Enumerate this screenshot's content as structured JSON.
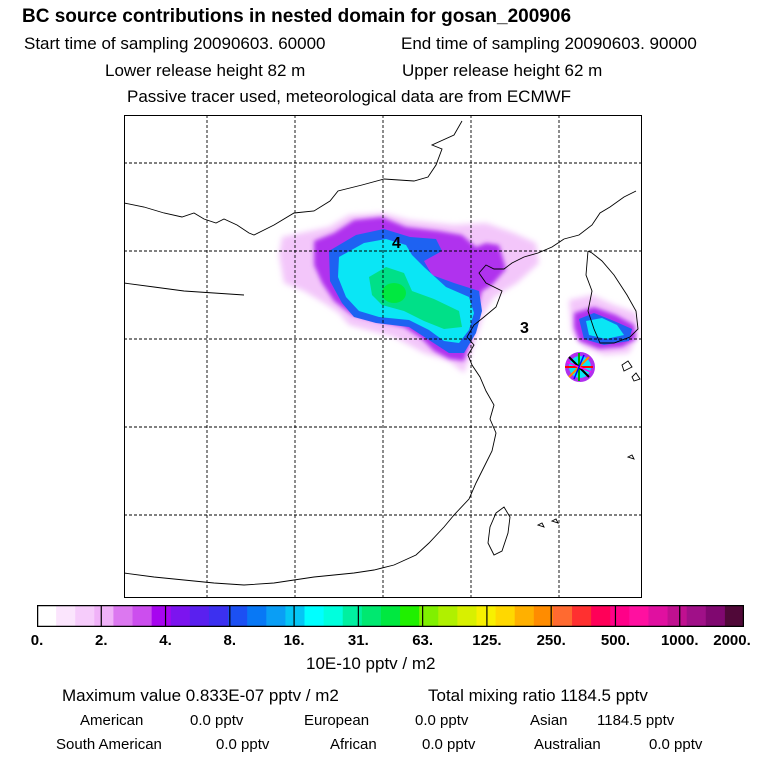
{
  "header": {
    "title": "BC  source contributions in nested domain for gosan_200906",
    "start_time": "Start time of sampling 20090603. 60000",
    "end_time": "End time of sampling 20090603. 90000",
    "lower_release": "Lower release height   82 m",
    "upper_release": "Upper release height   62 m",
    "tracer_note": "Passive tracer used, meteorological data are from ECMWF"
  },
  "map": {
    "region_labels": [
      "4",
      "3"
    ],
    "receptor": "gosan"
  },
  "colorbar": {
    "colors": [
      "#ffffff",
      "#fbe5fd",
      "#f6ccfb",
      "#f0b2f8",
      "#dc78f0",
      "#cc4eee",
      "#a705ef",
      "#7c14ef",
      "#5a20ef",
      "#3c30f0",
      "#1c50f3",
      "#0878f5",
      "#0a9ef5",
      "#05c6f5",
      "#00ffff",
      "#00ffdd",
      "#00f0a0",
      "#00e870",
      "#00e840",
      "#20f000",
      "#80f000",
      "#b0f000",
      "#d8f000",
      "#f8f000",
      "#ffd800",
      "#ffb000",
      "#ff8c00",
      "#ff6a30",
      "#ff3030",
      "#ff0058",
      "#ff0088",
      "#ff10a0",
      "#e010a0",
      "#c01090",
      "#a01088",
      "#800870",
      "#500838"
    ],
    "tick_labels": [
      "0.",
      "2.",
      "4.",
      "8.",
      "16.",
      "31.",
      "63.",
      "125.",
      "250.",
      "500.",
      "1000.",
      "2000."
    ],
    "units": "10E-10 pptv / m2"
  },
  "summary": {
    "max_label": "Maximum value  0.833E-07 pptv / m2",
    "total_label": "Total mixing ratio     1184.5 pptv",
    "regions": [
      {
        "name": "American",
        "value": "0.0 pptv"
      },
      {
        "name": "European",
        "value": "0.0 pptv"
      },
      {
        "name": "Asian",
        "value": "1184.5 pptv"
      },
      {
        "name": "South American",
        "value": "0.0 pptv"
      },
      {
        "name": "African",
        "value": "0.0 pptv"
      },
      {
        "name": "Australian",
        "value": "0.0 pptv"
      }
    ]
  }
}
